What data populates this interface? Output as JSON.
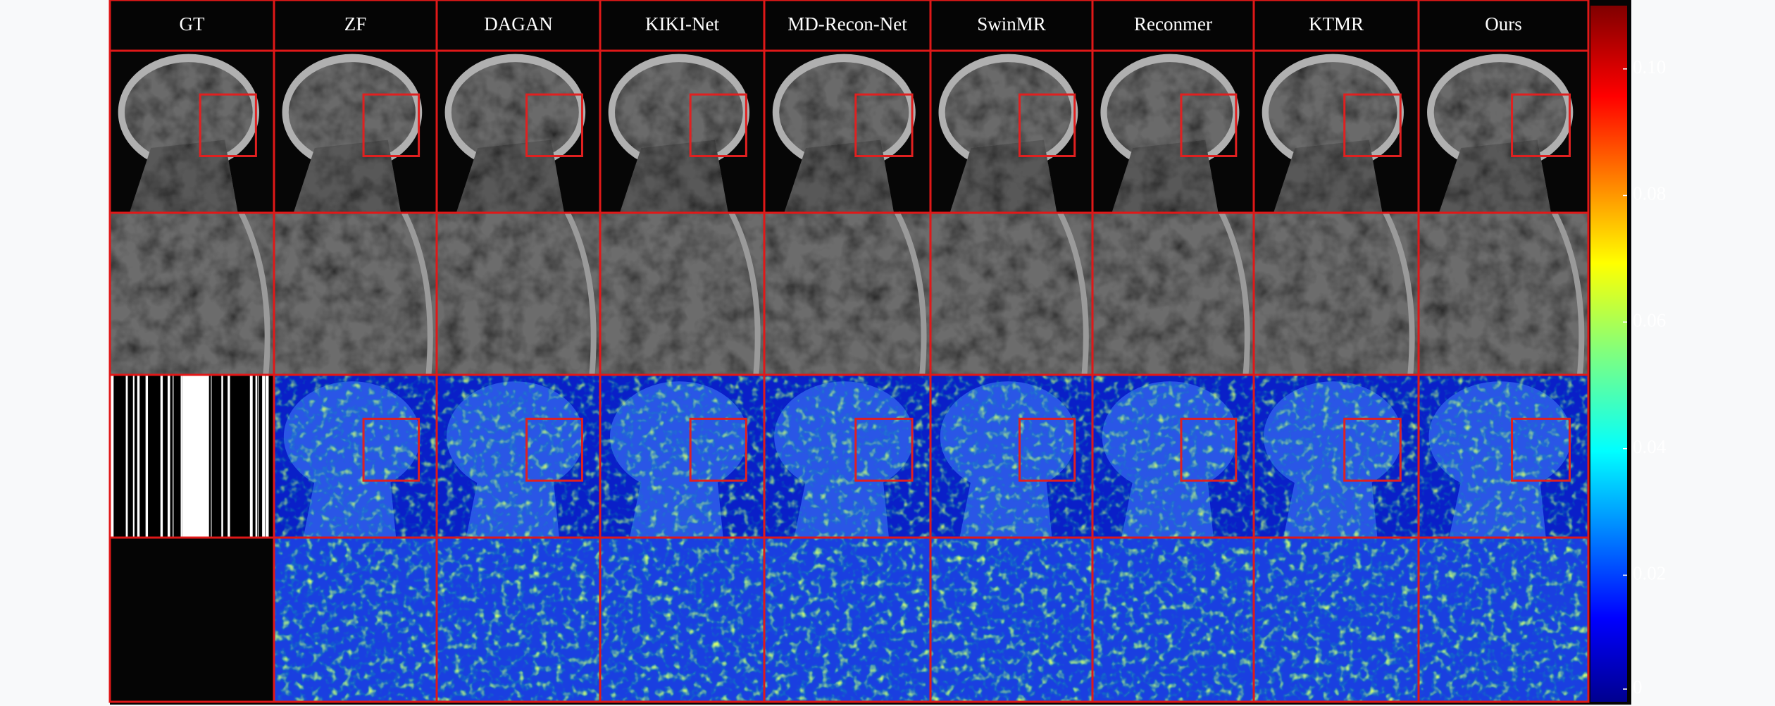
{
  "columns": [
    "GT",
    "ZF",
    "DAGAN",
    "KIKI-Net",
    "MD-Recon-Net",
    "SwinMR",
    "Reconmer",
    "KTMR",
    "Ours"
  ],
  "colorbar": {
    "lim": [
      0,
      0.11
    ],
    "ticks": [
      0,
      0.02,
      0.04,
      0.06,
      0.08,
      {
        "value": 0.1,
        "label": "0.10"
      }
    ]
  }
}
